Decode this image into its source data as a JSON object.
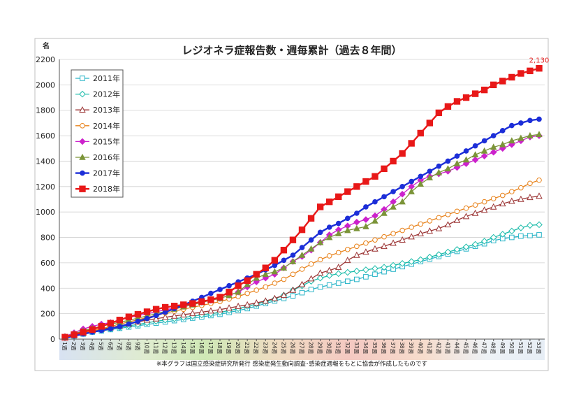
{
  "chart_data": {
    "type": "line",
    "title": "レジオネラ症報告数・週毎累計（過去８年間）",
    "ylabel": "名",
    "xlabel": "",
    "ylim": [
      0,
      2200
    ],
    "yticks": [
      0,
      200,
      400,
      600,
      800,
      1000,
      1200,
      1400,
      1600,
      1800,
      2000,
      2200
    ],
    "grid": true,
    "legend_position": "top-left",
    "footnote": "※本グラフは国立感染症研究所発行 感染症発生動向調査･感染症週報をもとに協会が作成したものです",
    "annotation": {
      "text": "2,130",
      "color": "#e32222"
    },
    "categories": [
      "1週",
      "2週",
      "3週",
      "4週",
      "5週",
      "6週",
      "7週",
      "8週",
      "9週",
      "10週",
      "11週",
      "12週",
      "13週",
      "14週",
      "15週",
      "16週",
      "17週",
      "18週",
      "19週",
      "20週",
      "21週",
      "22週",
      "23週",
      "24週",
      "25週",
      "26週",
      "27週",
      "28週",
      "29週",
      "30週",
      "31週",
      "32週",
      "33週",
      "34週",
      "35週",
      "36週",
      "37週",
      "38週",
      "39週",
      "40週",
      "41週",
      "42週",
      "43週",
      "44週",
      "45週",
      "46週",
      "47週",
      "48週",
      "49週",
      "50週",
      "51週",
      "52週",
      "53週"
    ],
    "series": [
      {
        "name": "2011年",
        "color": "#2ab5c8",
        "marker": "square-open",
        "values": [
          10,
          25,
          40,
          55,
          65,
          75,
          85,
          95,
          105,
          115,
          125,
          135,
          145,
          155,
          165,
          175,
          185,
          195,
          210,
          225,
          240,
          260,
          280,
          300,
          320,
          340,
          365,
          390,
          410,
          425,
          440,
          455,
          470,
          490,
          510,
          530,
          550,
          570,
          590,
          610,
          630,
          650,
          670,
          690,
          710,
          730,
          750,
          775,
          790,
          800,
          810,
          815,
          820
        ]
      },
      {
        "name": "2012年",
        "color": "#1bbcaa",
        "marker": "diamond-open",
        "values": [
          12,
          28,
          45,
          60,
          70,
          80,
          92,
          105,
          115,
          128,
          140,
          150,
          160,
          170,
          180,
          190,
          200,
          210,
          225,
          240,
          258,
          275,
          295,
          315,
          345,
          385,
          420,
          455,
          480,
          500,
          515,
          525,
          535,
          545,
          555,
          565,
          580,
          595,
          610,
          625,
          645,
          665,
          685,
          705,
          725,
          745,
          770,
          800,
          825,
          850,
          875,
          895,
          900
        ]
      },
      {
        "name": "2013年",
        "color": "#9b3434",
        "marker": "triangle-open",
        "values": [
          15,
          32,
          48,
          65,
          78,
          90,
          105,
          120,
          135,
          150,
          160,
          172,
          182,
          192,
          202,
          212,
          222,
          232,
          245,
          258,
          270,
          285,
          300,
          320,
          345,
          385,
          430,
          475,
          520,
          540,
          565,
          620,
          660,
          685,
          710,
          730,
          755,
          780,
          805,
          830,
          850,
          870,
          900,
          935,
          965,
          990,
          1015,
          1040,
          1065,
          1085,
          1100,
          1115,
          1125
        ]
      },
      {
        "name": "2014年",
        "color": "#e8821a",
        "marker": "circle-open",
        "values": [
          14,
          30,
          48,
          65,
          82,
          100,
          118,
          135,
          152,
          170,
          188,
          205,
          220,
          235,
          250,
          265,
          280,
          295,
          315,
          335,
          360,
          385,
          410,
          440,
          470,
          510,
          550,
          590,
          625,
          655,
          680,
          705,
          730,
          755,
          780,
          805,
          830,
          855,
          880,
          905,
          930,
          955,
          980,
          1005,
          1030,
          1055,
          1080,
          1105,
          1130,
          1160,
          1190,
          1225,
          1250
        ]
      },
      {
        "name": "2015年",
        "color": "#cc22cc",
        "marker": "diamond-filled",
        "values": [
          20,
          50,
          80,
          100,
          118,
          130,
          150,
          170,
          185,
          200,
          215,
          230,
          245,
          260,
          275,
          290,
          305,
          320,
          345,
          370,
          410,
          450,
          480,
          510,
          560,
          610,
          650,
          700,
          760,
          820,
          860,
          890,
          920,
          940,
          970,
          1020,
          1080,
          1140,
          1200,
          1250,
          1280,
          1300,
          1320,
          1350,
          1380,
          1410,
          1440,
          1470,
          1500,
          1530,
          1560,
          1590,
          1600
        ]
      },
      {
        "name": "2016年",
        "color": "#7b9438",
        "marker": "triangle-filled",
        "values": [
          18,
          42,
          65,
          85,
          102,
          118,
          132,
          148,
          165,
          182,
          200,
          218,
          236,
          254,
          270,
          288,
          305,
          320,
          345,
          370,
          430,
          480,
          510,
          530,
          560,
          610,
          660,
          710,
          760,
          800,
          830,
          855,
          870,
          885,
          930,
          990,
          1040,
          1080,
          1160,
          1220,
          1270,
          1310,
          1340,
          1380,
          1410,
          1450,
          1480,
          1510,
          1530,
          1560,
          1580,
          1600,
          1610
        ]
      },
      {
        "name": "2017年",
        "color": "#1c2ed8",
        "marker": "circle-filled",
        "values": [
          10,
          25,
          40,
          55,
          68,
          82,
          98,
          118,
          140,
          162,
          185,
          212,
          240,
          268,
          298,
          328,
          360,
          390,
          420,
          450,
          480,
          510,
          545,
          580,
          620,
          660,
          720,
          780,
          840,
          880,
          910,
          950,
          990,
          1040,
          1080,
          1120,
          1160,
          1200,
          1240,
          1280,
          1320,
          1360,
          1400,
          1440,
          1480,
          1520,
          1560,
          1600,
          1640,
          1680,
          1700,
          1720,
          1730
        ]
      },
      {
        "name": "2018年",
        "color": "#e81818",
        "marker": "square-filled",
        "values": [
          15,
          35,
          55,
          75,
          100,
          125,
          150,
          175,
          195,
          215,
          235,
          250,
          260,
          270,
          280,
          295,
          310,
          330,
          370,
          420,
          460,
          510,
          560,
          620,
          700,
          780,
          860,
          950,
          1040,
          1080,
          1120,
          1160,
          1200,
          1240,
          1280,
          1340,
          1400,
          1460,
          1540,
          1620,
          1700,
          1780,
          1830,
          1870,
          1900,
          1930,
          1960,
          2000,
          2030,
          2060,
          2090,
          2110,
          2130
        ]
      }
    ]
  }
}
